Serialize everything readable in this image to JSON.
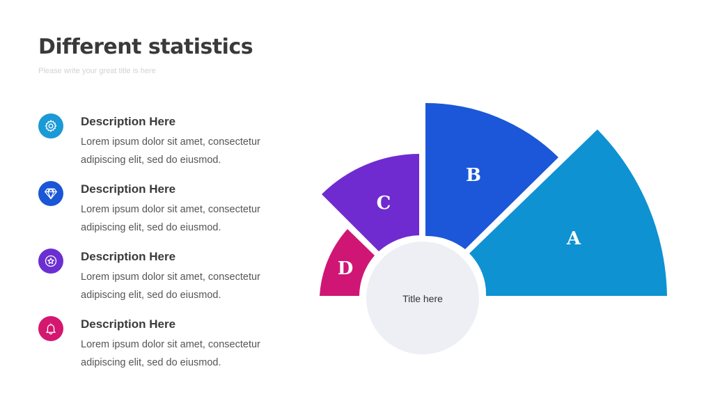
{
  "header": {
    "title": "Different statistics",
    "subtitle": "Please write your great title is here"
  },
  "items": [
    {
      "icon": "gear-icon",
      "color": "#1a9ad6",
      "heading": "Description Here",
      "body": "Lorem ipsum dolor sit amet, consectetur adipiscing elit, sed do eiusmod."
    },
    {
      "icon": "diamond-icon",
      "color": "#1a56d6",
      "heading": "Description Here",
      "body": "Lorem ipsum dolor sit amet, consectetur adipiscing elit, sed do eiusmod."
    },
    {
      "icon": "star-badge-icon",
      "color": "#6b2fd1",
      "heading": "Description Here",
      "body": "Lorem ipsum dolor sit amet, consectetur adipiscing elit, sed do eiusmod."
    },
    {
      "icon": "bell-icon",
      "color": "#d4176f",
      "heading": "Description Here",
      "body": "Lorem ipsum dolor sit amet, consectetur adipiscing elit, sed do eiusmod."
    }
  ],
  "diagram": {
    "center_label": "Title here",
    "center_color": "#eeeff4",
    "segments": [
      {
        "label": "A",
        "color": "#0e92d2"
      },
      {
        "label": "B",
        "color": "#1b57d8"
      },
      {
        "label": "C",
        "color": "#6f2bd0"
      },
      {
        "label": "D",
        "color": "#cf1674"
      }
    ]
  }
}
